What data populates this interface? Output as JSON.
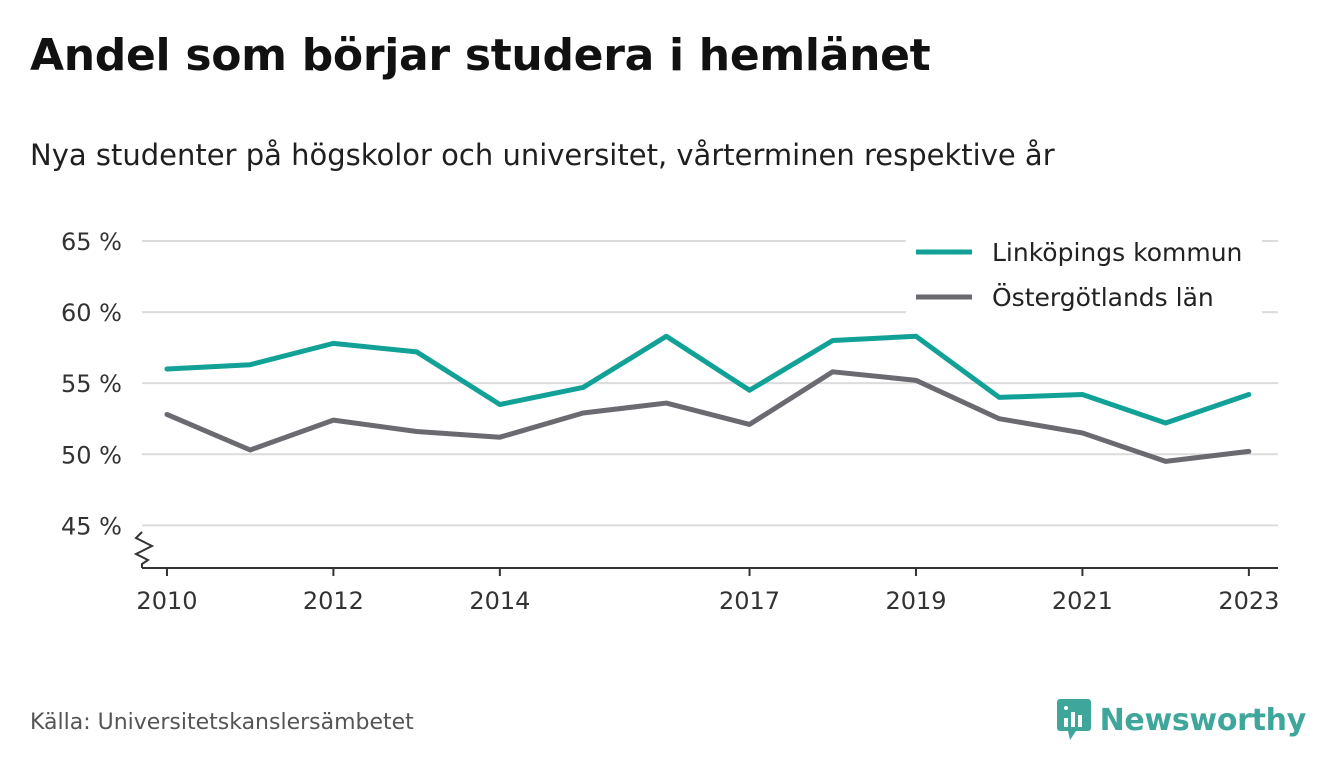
{
  "header": {
    "title": "Andel som börjar studera i hemlänet",
    "subtitle": "Nya studenter på högskolor och universitet, vårterminen respektive år"
  },
  "footer": {
    "source": "Källa: Universitetskanslersämbetet",
    "brand": "Newsworthy",
    "brand_icon": "newsworthy-logo-icon",
    "brand_color": "#3ea69a"
  },
  "chart_data": {
    "type": "line",
    "x": [
      2010,
      2011,
      2012,
      2013,
      2014,
      2015,
      2016,
      2017,
      2018,
      2019,
      2020,
      2021,
      2022,
      2023
    ],
    "x_tick_labels": [
      "2010",
      "2012",
      "2014",
      "2017",
      "2019",
      "2021",
      "2023"
    ],
    "y_tick_labels": [
      "45 %",
      "50 %",
      "55 %",
      "60 %",
      "65 %"
    ],
    "y_ticks": [
      45,
      50,
      55,
      60,
      65
    ],
    "ylim": [
      42,
      65
    ],
    "xlim": [
      2009.7,
      2023.35
    ],
    "y_axis_break": true,
    "grid": true,
    "legend_position": "top-right",
    "series": [
      {
        "name": "Linköpings kommun",
        "color": "#12a196",
        "values": [
          56.0,
          56.3,
          57.8,
          57.2,
          53.5,
          54.7,
          58.3,
          54.5,
          58.0,
          58.3,
          54.0,
          54.2,
          52.2,
          54.2
        ]
      },
      {
        "name": "Östergötlands län",
        "color": "#6b6a70",
        "values": [
          52.8,
          50.3,
          52.4,
          51.6,
          51.2,
          52.9,
          53.6,
          52.1,
          55.8,
          55.2,
          52.5,
          51.5,
          49.5,
          50.2
        ]
      }
    ]
  }
}
